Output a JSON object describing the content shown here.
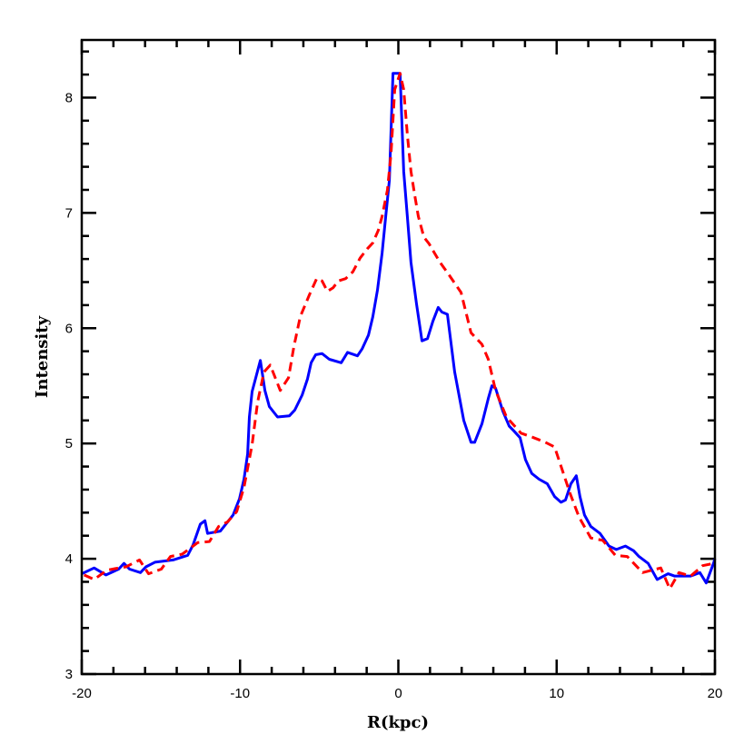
{
  "chart_data": {
    "type": "line",
    "title": "",
    "xlabel": "R(kpc)",
    "ylabel": "Intensity",
    "xlim": [
      -20,
      20
    ],
    "ylim": [
      3,
      8.5
    ],
    "xticks": [
      -20,
      -10,
      0,
      10,
      20
    ],
    "yticks": [
      3,
      4,
      5,
      6,
      7,
      8
    ],
    "xtick_labels": [
      "-20",
      "-10",
      "0",
      "10",
      "20"
    ],
    "ytick_labels": [
      "3",
      "4",
      "5",
      "6",
      "7",
      "8"
    ],
    "grid": false,
    "legend": "none",
    "series": [
      {
        "color": "#0000ff",
        "style": "solid",
        "points": [
          [
            -20.0,
            3.87
          ],
          [
            -19.22,
            3.92
          ],
          [
            -18.47,
            3.86
          ],
          [
            -17.67,
            3.91
          ],
          [
            -17.33,
            3.96
          ],
          [
            -16.98,
            3.91
          ],
          [
            -16.29,
            3.88
          ],
          [
            -15.95,
            3.93
          ],
          [
            -15.38,
            3.97
          ],
          [
            -14.23,
            3.99
          ],
          [
            -13.31,
            4.03
          ],
          [
            -12.97,
            4.12
          ],
          [
            -12.51,
            4.3
          ],
          [
            -12.22,
            4.33
          ],
          [
            -12.05,
            4.22
          ],
          [
            -11.24,
            4.24
          ],
          [
            -10.44,
            4.38
          ],
          [
            -10.04,
            4.52
          ],
          [
            -9.75,
            4.69
          ],
          [
            -9.52,
            4.91
          ],
          [
            -9.41,
            5.23
          ],
          [
            -9.24,
            5.45
          ],
          [
            -8.72,
            5.72
          ],
          [
            -8.43,
            5.46
          ],
          [
            -8.15,
            5.32
          ],
          [
            -7.63,
            5.23
          ],
          [
            -6.88,
            5.24
          ],
          [
            -6.54,
            5.29
          ],
          [
            -6.08,
            5.42
          ],
          [
            -5.74,
            5.56
          ],
          [
            -5.51,
            5.7
          ],
          [
            -5.22,
            5.77
          ],
          [
            -4.82,
            5.78
          ],
          [
            -4.36,
            5.73
          ],
          [
            -3.61,
            5.7
          ],
          [
            -3.21,
            5.79
          ],
          [
            -2.58,
            5.76
          ],
          [
            -2.29,
            5.82
          ],
          [
            -1.89,
            5.94
          ],
          [
            -1.61,
            6.1
          ],
          [
            -1.32,
            6.33
          ],
          [
            -1.03,
            6.65
          ],
          [
            -0.8,
            6.97
          ],
          [
            -0.57,
            7.28
          ],
          [
            -0.34,
            8.21
          ],
          [
            0.11,
            8.21
          ],
          [
            0.34,
            7.36
          ],
          [
            0.57,
            6.97
          ],
          [
            0.8,
            6.57
          ],
          [
            1.15,
            6.21
          ],
          [
            1.49,
            5.89
          ],
          [
            1.84,
            5.91
          ],
          [
            2.18,
            6.06
          ],
          [
            2.52,
            6.18
          ],
          [
            2.75,
            6.14
          ],
          [
            3.1,
            6.12
          ],
          [
            3.56,
            5.62
          ],
          [
            4.13,
            5.2
          ],
          [
            4.59,
            5.01
          ],
          [
            4.82,
            5.01
          ],
          [
            5.28,
            5.17
          ],
          [
            5.68,
            5.39
          ],
          [
            5.91,
            5.5
          ],
          [
            6.14,
            5.48
          ],
          [
            6.6,
            5.28
          ],
          [
            7.0,
            5.15
          ],
          [
            7.29,
            5.11
          ],
          [
            7.69,
            5.05
          ],
          [
            8.03,
            4.86
          ],
          [
            8.43,
            4.74
          ],
          [
            8.89,
            4.69
          ],
          [
            9.41,
            4.65
          ],
          [
            9.87,
            4.54
          ],
          [
            10.27,
            4.49
          ],
          [
            10.56,
            4.51
          ],
          [
            10.9,
            4.65
          ],
          [
            11.24,
            4.72
          ],
          [
            11.47,
            4.54
          ],
          [
            11.76,
            4.38
          ],
          [
            12.16,
            4.28
          ],
          [
            12.74,
            4.22
          ],
          [
            13.31,
            4.11
          ],
          [
            13.77,
            4.08
          ],
          [
            14.34,
            4.11
          ],
          [
            14.86,
            4.07
          ],
          [
            15.2,
            4.02
          ],
          [
            15.78,
            3.96
          ],
          [
            16.35,
            3.82
          ],
          [
            17.04,
            3.87
          ],
          [
            17.44,
            3.85
          ],
          [
            17.9,
            3.85
          ],
          [
            18.47,
            3.85
          ],
          [
            19.05,
            3.88
          ],
          [
            19.45,
            3.79
          ],
          [
            19.91,
            3.96
          ],
          [
            20.0,
            4.0
          ]
        ]
      },
      {
        "color": "#ff0000",
        "style": "dashed",
        "points": [
          [
            -19.85,
            3.86
          ],
          [
            -19.22,
            3.82
          ],
          [
            -18.42,
            3.9
          ],
          [
            -17.67,
            3.92
          ],
          [
            -17.21,
            3.93
          ],
          [
            -16.35,
            3.99
          ],
          [
            -15.78,
            3.87
          ],
          [
            -14.97,
            3.91
          ],
          [
            -14.4,
            4.02
          ],
          [
            -13.65,
            4.04
          ],
          [
            -12.68,
            4.14
          ],
          [
            -11.93,
            4.15
          ],
          [
            -11.36,
            4.28
          ],
          [
            -10.79,
            4.32
          ],
          [
            -10.21,
            4.41
          ],
          [
            -9.75,
            4.62
          ],
          [
            -9.24,
            4.99
          ],
          [
            -8.89,
            5.36
          ],
          [
            -8.49,
            5.62
          ],
          [
            -8.09,
            5.68
          ],
          [
            -7.46,
            5.46
          ],
          [
            -6.94,
            5.57
          ],
          [
            -6.6,
            5.84
          ],
          [
            -6.2,
            6.1
          ],
          [
            -5.62,
            6.29
          ],
          [
            -5.16,
            6.43
          ],
          [
            -4.82,
            6.41
          ],
          [
            -4.48,
            6.32
          ],
          [
            -4.13,
            6.35
          ],
          [
            -3.79,
            6.41
          ],
          [
            -3.33,
            6.43
          ],
          [
            -2.87,
            6.49
          ],
          [
            -2.41,
            6.61
          ],
          [
            -1.95,
            6.69
          ],
          [
            -1.61,
            6.74
          ],
          [
            -1.26,
            6.85
          ],
          [
            -1.03,
            6.97
          ],
          [
            -0.69,
            7.2
          ],
          [
            -0.46,
            7.52
          ],
          [
            -0.23,
            8.07
          ],
          [
            0.11,
            8.21
          ],
          [
            0.34,
            8.07
          ],
          [
            0.57,
            7.68
          ],
          [
            0.8,
            7.36
          ],
          [
            1.03,
            7.16
          ],
          [
            1.26,
            6.97
          ],
          [
            1.61,
            6.79
          ],
          [
            1.95,
            6.73
          ],
          [
            2.29,
            6.65
          ],
          [
            2.64,
            6.57
          ],
          [
            3.16,
            6.47
          ],
          [
            3.96,
            6.31
          ],
          [
            4.59,
            5.96
          ],
          [
            5.28,
            5.86
          ],
          [
            5.68,
            5.73
          ],
          [
            6.14,
            5.46
          ],
          [
            6.83,
            5.23
          ],
          [
            7.75,
            5.09
          ],
          [
            8.55,
            5.05
          ],
          [
            9.29,
            5.01
          ],
          [
            9.87,
            4.97
          ],
          [
            10.84,
            4.57
          ],
          [
            11.42,
            4.36
          ],
          [
            12.16,
            4.18
          ],
          [
            12.91,
            4.16
          ],
          [
            13.71,
            4.03
          ],
          [
            14.46,
            4.02
          ],
          [
            15.43,
            3.88
          ],
          [
            16.58,
            3.92
          ],
          [
            17.15,
            3.74
          ],
          [
            17.73,
            3.88
          ],
          [
            18.47,
            3.85
          ],
          [
            19.22,
            3.94
          ],
          [
            19.91,
            3.96
          ]
        ]
      }
    ]
  }
}
